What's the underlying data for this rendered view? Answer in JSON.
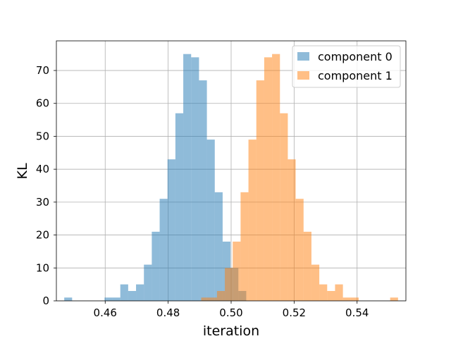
{
  "chart_data": {
    "type": "bar",
    "subtype": "overlapping-histogram",
    "xlabel": "iteration",
    "ylabel": "KL",
    "xlim": [
      0.4445,
      0.5555
    ],
    "ylim": [
      0,
      79
    ],
    "xticks": [
      0.46,
      0.48,
      0.5,
      0.52,
      0.54
    ],
    "xtick_labels": [
      "0.46",
      "0.48",
      "0.50",
      "0.52",
      "0.54"
    ],
    "yticks": [
      0,
      10,
      20,
      30,
      40,
      50,
      60,
      70
    ],
    "ytick_labels": [
      "0",
      "10",
      "20",
      "30",
      "40",
      "50",
      "60",
      "70"
    ],
    "grid": true,
    "legend_position": "top-right",
    "series": [
      {
        "name": "component 0",
        "color": "#1f77b4",
        "alpha": 0.5,
        "bins": [
          [
            0.447,
            0.4495,
            1
          ],
          [
            0.4598,
            0.4623,
            1
          ],
          [
            0.4623,
            0.4648,
            1
          ],
          [
            0.4648,
            0.4673,
            5
          ],
          [
            0.4673,
            0.4698,
            3
          ],
          [
            0.4698,
            0.4723,
            5
          ],
          [
            0.4723,
            0.4748,
            11
          ],
          [
            0.4748,
            0.4773,
            21
          ],
          [
            0.4773,
            0.4798,
            31
          ],
          [
            0.4798,
            0.4823,
            43
          ],
          [
            0.4823,
            0.4848,
            57
          ],
          [
            0.4848,
            0.4873,
            75
          ],
          [
            0.4873,
            0.4898,
            74
          ],
          [
            0.4898,
            0.4923,
            67
          ],
          [
            0.4923,
            0.4948,
            49
          ],
          [
            0.4948,
            0.4973,
            33
          ],
          [
            0.4973,
            0.4998,
            18
          ],
          [
            0.4998,
            0.5023,
            10
          ],
          [
            0.5023,
            0.5048,
            3
          ]
        ]
      },
      {
        "name": "component 1",
        "color": "#ff7f0e",
        "alpha": 0.5,
        "bins": [
          [
            0.4905,
            0.493,
            1
          ],
          [
            0.493,
            0.4955,
            1
          ],
          [
            0.4955,
            0.498,
            3
          ],
          [
            0.498,
            0.5005,
            10
          ],
          [
            0.5005,
            0.503,
            18
          ],
          [
            0.503,
            0.5055,
            33
          ],
          [
            0.5055,
            0.508,
            49
          ],
          [
            0.508,
            0.5105,
            67
          ],
          [
            0.5105,
            0.513,
            74
          ],
          [
            0.513,
            0.5155,
            75
          ],
          [
            0.5155,
            0.518,
            57
          ],
          [
            0.518,
            0.5205,
            43
          ],
          [
            0.5205,
            0.523,
            31
          ],
          [
            0.523,
            0.5255,
            21
          ],
          [
            0.5255,
            0.528,
            11
          ],
          [
            0.528,
            0.5305,
            5
          ],
          [
            0.5305,
            0.533,
            3
          ],
          [
            0.533,
            0.5355,
            5
          ],
          [
            0.5355,
            0.538,
            1
          ],
          [
            0.538,
            0.5405,
            1
          ],
          [
            0.5505,
            0.553,
            1
          ]
        ]
      }
    ]
  }
}
